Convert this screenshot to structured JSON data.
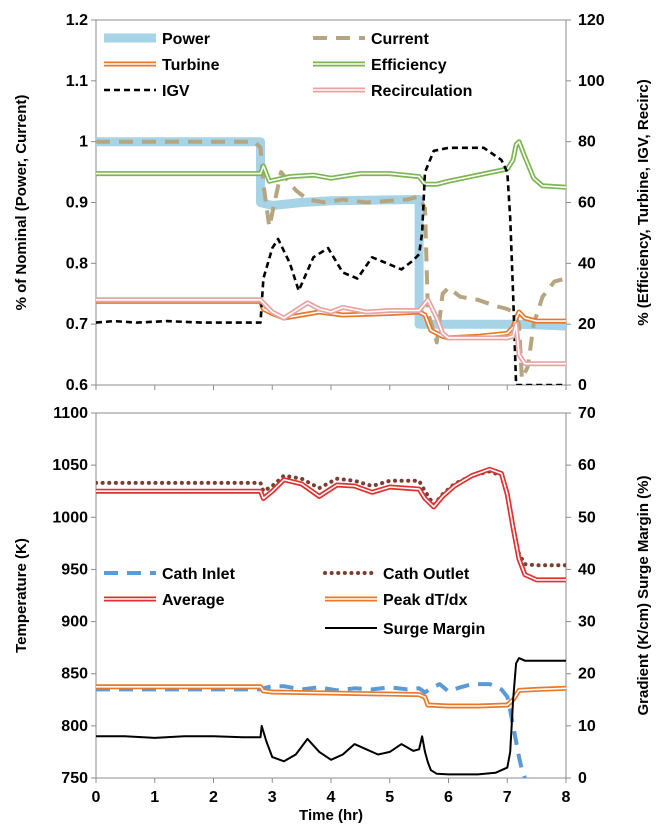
{
  "chart_data": [
    {
      "type": "line",
      "panel": "top",
      "ylabel": "% of Nominal (Power, Current)",
      "y2label": "% (Efficiency, Turbine, IGV, Recirc)",
      "xlim": [
        0,
        8
      ],
      "ylim": [
        0.6,
        1.2
      ],
      "y2lim": [
        0,
        120
      ],
      "yticks": [
        "0.6",
        "0.7",
        "0.8",
        "0.9",
        "1",
        "1.1",
        "1.2"
      ],
      "y2ticks": [
        "0",
        "20",
        "40",
        "60",
        "80",
        "100",
        "120"
      ],
      "legend_position": "top",
      "series": [
        {
          "name": "Power",
          "axis": "left",
          "color": "#a6d3e6",
          "style": "thick",
          "x": [
            0,
            2.8,
            2.8,
            3.0,
            3.5,
            4.0,
            5.5,
            5.5,
            6.0,
            6.5,
            7.1,
            7.2,
            8.0
          ],
          "y": [
            1.0,
            1.0,
            0.9,
            0.895,
            0.9,
            0.903,
            0.905,
            0.7,
            0.7,
            0.7,
            0.7,
            0.7,
            0.697
          ]
        },
        {
          "name": "Current",
          "axis": "left",
          "color": "#b5a681",
          "style": "dashed",
          "x": [
            0,
            2.7,
            2.8,
            2.85,
            2.95,
            3.15,
            3.4,
            3.6,
            3.9,
            4.2,
            4.6,
            5.0,
            5.3,
            5.5,
            5.6,
            5.65,
            5.8,
            5.9,
            6.0,
            6.2,
            6.5,
            6.8,
            7.0,
            7.1,
            7.2,
            7.25,
            7.35,
            7.45,
            7.6,
            7.8,
            8.0
          ],
          "y": [
            1.0,
            1.0,
            0.99,
            0.93,
            0.86,
            0.95,
            0.92,
            0.905,
            0.9,
            0.905,
            0.9,
            0.903,
            0.905,
            0.91,
            0.89,
            0.72,
            0.67,
            0.75,
            0.76,
            0.745,
            0.74,
            0.73,
            0.725,
            0.72,
            0.7,
            0.61,
            0.63,
            0.7,
            0.745,
            0.77,
            0.775
          ]
        },
        {
          "name": "Turbine",
          "axis": "right",
          "color": "#e8792a",
          "style": "double",
          "x": [
            0,
            2.8,
            2.85,
            3.0,
            3.2,
            3.5,
            3.8,
            4.2,
            5.0,
            5.5,
            5.6,
            5.7,
            5.9,
            6.0,
            6.5,
            7.0,
            7.1,
            7.15,
            7.2,
            7.3,
            7.5,
            8.0
          ],
          "y": [
            27.5,
            27.5,
            25,
            23.5,
            22,
            23,
            24,
            23,
            23.5,
            24,
            23,
            18,
            16,
            15.5,
            16,
            17,
            19,
            22,
            24,
            22,
            21,
            21
          ]
        },
        {
          "name": "Efficiency",
          "axis": "right",
          "color": "#7cb552",
          "style": "double",
          "x": [
            0,
            2.75,
            2.8,
            2.85,
            2.95,
            3.3,
            3.7,
            4.0,
            4.5,
            5.0,
            5.5,
            5.6,
            5.8,
            6.0,
            6.5,
            7.0,
            7.1,
            7.15,
            7.2,
            7.3,
            7.45,
            7.6,
            8.0
          ],
          "y": [
            69.5,
            69.5,
            69.5,
            72,
            67,
            68.5,
            69,
            68,
            69.5,
            69.5,
            68.5,
            66,
            66,
            67,
            69,
            71,
            74,
            79,
            80,
            75,
            68,
            65.5,
            65
          ]
        },
        {
          "name": "IGV",
          "axis": "right",
          "color": "#000000",
          "style": "dashed",
          "x": [
            0,
            0.3,
            0.7,
            1.2,
            1.8,
            2.3,
            2.8,
            2.85,
            3.0,
            3.1,
            3.3,
            3.45,
            3.7,
            3.95,
            4.2,
            4.45,
            4.7,
            4.95,
            5.2,
            5.4,
            5.5,
            5.55,
            5.6,
            5.75,
            6.0,
            6.6,
            6.9,
            7.0,
            7.05,
            7.1,
            7.15,
            8.0
          ],
          "y": [
            20.5,
            21,
            20.5,
            21,
            20.5,
            20.5,
            20.5,
            35,
            45,
            48,
            40,
            31,
            42,
            45,
            37,
            35,
            42,
            40,
            38,
            41,
            43,
            50,
            70,
            77,
            78,
            78,
            74,
            70,
            55,
            30,
            0,
            0
          ]
        },
        {
          "name": "Recirculation",
          "axis": "right",
          "color": "#e8a3a3",
          "style": "double",
          "x": [
            0,
            2.8,
            2.85,
            3.0,
            3.2,
            3.4,
            3.6,
            3.8,
            4.0,
            4.2,
            4.6,
            5.0,
            5.5,
            5.65,
            5.8,
            5.9,
            6.0,
            6.5,
            7.0,
            7.1,
            7.15,
            7.2,
            7.3,
            8.0
          ],
          "y": [
            28,
            28,
            27,
            24,
            22,
            24.5,
            27,
            25,
            24,
            25.5,
            24,
            24.5,
            24.5,
            28,
            22,
            17,
            15.5,
            15.5,
            15.5,
            16,
            20,
            10,
            7,
            7
          ]
        }
      ]
    },
    {
      "type": "line",
      "panel": "bottom",
      "xlabel": "Time (hr)",
      "ylabel": "Temperature (K)",
      "y2label": "Gradient (K/cm) Surge Margin (%)",
      "xlim": [
        0,
        8
      ],
      "ylim": [
        750,
        1100
      ],
      "y2lim": [
        0,
        70
      ],
      "xticks": [
        "0",
        "1",
        "2",
        "3",
        "4",
        "5",
        "6",
        "7",
        "8"
      ],
      "yticks": [
        "750",
        "800",
        "850",
        "900",
        "950",
        "1000",
        "1050",
        "1100"
      ],
      "y2ticks": [
        "0",
        "10",
        "20",
        "30",
        "40",
        "50",
        "60",
        "70"
      ],
      "legend_position": "center",
      "series": [
        {
          "name": "Cath Inlet",
          "axis": "left",
          "color": "#5b9bd5",
          "style": "dashed",
          "x": [
            0,
            2.8,
            2.85,
            3.0,
            3.2,
            3.5,
            3.8,
            4.1,
            4.4,
            4.7,
            5.0,
            5.3,
            5.5,
            5.6,
            5.7,
            5.85,
            6.0,
            6.2,
            6.4,
            6.7,
            6.9,
            7.0,
            7.05,
            7.1,
            7.15,
            7.2,
            7.25,
            7.3
          ],
          "y": [
            835,
            835,
            836,
            838,
            838,
            835,
            837,
            834,
            836,
            835,
            837,
            835,
            836,
            832,
            836,
            840,
            833,
            837,
            840,
            840,
            835,
            828,
            815,
            800,
            785,
            770,
            758,
            750
          ]
        },
        {
          "name": "Cath Outlet",
          "axis": "left",
          "color": "#7b3e33",
          "style": "dotted",
          "x": [
            0,
            2.8,
            2.85,
            3.0,
            3.2,
            3.5,
            3.8,
            4.1,
            4.4,
            4.7,
            5.0,
            5.5,
            5.6,
            5.75,
            5.9,
            6.1,
            6.4,
            6.7,
            6.9,
            7.0,
            7.1,
            7.2,
            7.3,
            7.5,
            8.0
          ],
          "y": [
            1033,
            1033,
            1025,
            1030,
            1040,
            1037,
            1028,
            1037,
            1035,
            1030,
            1035,
            1035,
            1025,
            1012,
            1022,
            1032,
            1040,
            1044,
            1040,
            1020,
            990,
            965,
            955,
            954,
            954
          ]
        },
        {
          "name": "Average",
          "axis": "left",
          "color": "#e03030",
          "style": "double",
          "x": [
            0,
            2.8,
            2.85,
            3.0,
            3.2,
            3.5,
            3.8,
            4.1,
            4.4,
            4.7,
            5.0,
            5.5,
            5.6,
            5.75,
            5.9,
            6.1,
            6.4,
            6.7,
            6.9,
            7.0,
            7.1,
            7.2,
            7.3,
            7.5,
            8.0
          ],
          "y": [
            1025,
            1025,
            1018,
            1025,
            1036,
            1032,
            1020,
            1031,
            1030,
            1024,
            1029,
            1027,
            1018,
            1010,
            1020,
            1030,
            1040,
            1046,
            1042,
            1022,
            990,
            960,
            945,
            940,
            940
          ]
        },
        {
          "name": "Peak dT/dx",
          "axis": "right",
          "color": "#e8792a",
          "style": "double",
          "x": [
            0,
            2.8,
            2.85,
            3.0,
            5.5,
            5.6,
            5.65,
            6.0,
            6.5,
            7.0,
            7.1,
            7.2,
            7.5,
            8.0
          ],
          "y": [
            17.5,
            17.5,
            16.7,
            16.5,
            16.0,
            15.5,
            14,
            13.8,
            13.8,
            14,
            15,
            16.8,
            17,
            17.2
          ]
        },
        {
          "name": "Surge Margin",
          "axis": "right",
          "color": "#000000",
          "style": "solid",
          "x": [
            0,
            0.5,
            1.0,
            1.5,
            2.0,
            2.5,
            2.8,
            2.82,
            2.9,
            3.0,
            3.2,
            3.4,
            3.6,
            3.8,
            4.0,
            4.2,
            4.4,
            4.6,
            4.8,
            5.0,
            5.2,
            5.4,
            5.5,
            5.55,
            5.6,
            5.65,
            5.7,
            5.8,
            6.0,
            6.5,
            6.8,
            7.0,
            7.05,
            7.1,
            7.15,
            7.2,
            7.3,
            7.6,
            8.0
          ],
          "y": [
            8,
            8,
            7.7,
            8,
            8,
            7.8,
            7.8,
            10,
            7,
            4,
            3.2,
            4.5,
            7.5,
            5,
            3.5,
            4.5,
            6.5,
            5.5,
            4.5,
            5,
            6.5,
            5.2,
            5.5,
            8,
            5,
            3,
            1.5,
            0.8,
            0.7,
            0.7,
            1.0,
            2.0,
            5,
            15,
            22,
            23,
            22.5,
            22.5,
            22.5
          ]
        }
      ]
    }
  ]
}
